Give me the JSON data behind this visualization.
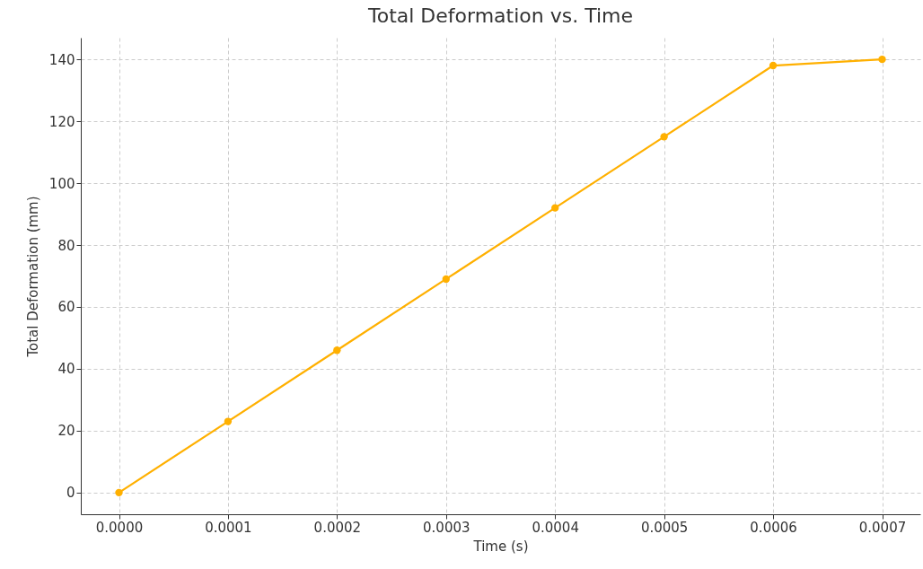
{
  "chart_data": {
    "type": "line",
    "title": "Total Deformation vs. Time",
    "xlabel": "Time (s)",
    "ylabel": "Total Deformation (mm)",
    "x": [
      0,
      0.0001,
      0.0002,
      0.0003,
      0.0004,
      0.0005,
      0.0006,
      0.0007
    ],
    "series": [
      {
        "color": "#ffb000",
        "values": [
          0,
          23,
          46,
          69,
          92,
          115,
          138,
          140
        ]
      }
    ],
    "xlim": [
      -3.5e-05,
      0.000735
    ],
    "ylim": [
      -7,
      147
    ],
    "xticks": [
      {
        "value": 0,
        "label": "0.0000"
      },
      {
        "value": 0.0001,
        "label": "0.0001"
      },
      {
        "value": 0.0002,
        "label": "0.0002"
      },
      {
        "value": 0.0003,
        "label": "0.0003"
      },
      {
        "value": 0.0004,
        "label": "0.0004"
      },
      {
        "value": 0.0005,
        "label": "0.0005"
      },
      {
        "value": 0.0006,
        "label": "0.0006"
      },
      {
        "value": 0.0007,
        "label": "0.0007"
      }
    ],
    "yticks": [
      0,
      20,
      40,
      60,
      80,
      100,
      120,
      140
    ],
    "grid": true,
    "marker": "circle",
    "line_style": "solid"
  }
}
